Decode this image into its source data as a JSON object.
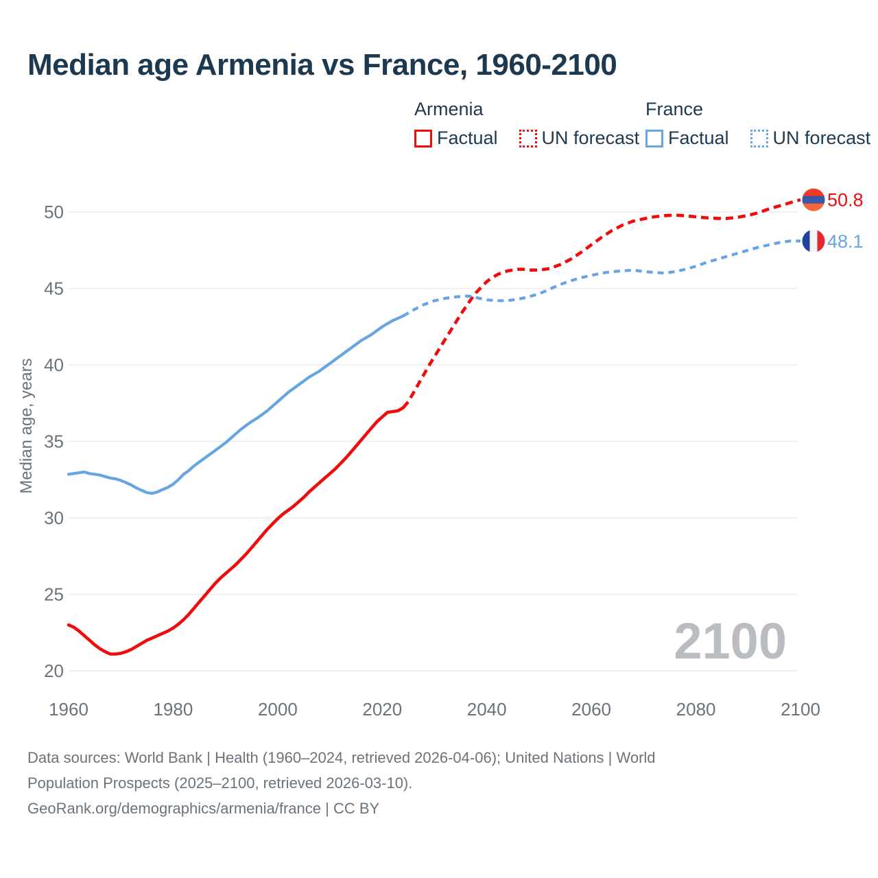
{
  "title": "Median age Armenia vs France, 1960-2100",
  "legend": {
    "groups": [
      {
        "name": "Armenia",
        "color": "#ee0d0d",
        "items": [
          {
            "label": "Factual",
            "style": "solid"
          },
          {
            "label": "UN forecast",
            "style": "dotted"
          }
        ]
      },
      {
        "name": "France",
        "color": "#66a4e2",
        "items": [
          {
            "label": "Factual",
            "style": "solid"
          },
          {
            "label": "UN forecast",
            "style": "dotted"
          }
        ]
      }
    ]
  },
  "chart_data": {
    "type": "line",
    "title": "Median age Armenia vs France, 1960-2100",
    "xlabel": "",
    "ylabel": "Median age, years",
    "xlim": [
      1960,
      2100
    ],
    "ylim": [
      20,
      50
    ],
    "xticks": [
      1960,
      1980,
      2000,
      2020,
      2040,
      2060,
      2080,
      2100
    ],
    "yticks": [
      20,
      25,
      30,
      35,
      40,
      45,
      50
    ],
    "grid": true,
    "legend_position": "top-right",
    "watermark": "2100",
    "series": [
      {
        "id": "armenia-factual",
        "name": "Armenia Factual",
        "color": "#ee0d0d",
        "width": 4.6,
        "dash": null,
        "points": [
          [
            1960,
            23.0
          ],
          [
            1961,
            22.85
          ],
          [
            1962,
            22.6
          ],
          [
            1963,
            22.3
          ],
          [
            1964,
            22.0
          ],
          [
            1965,
            21.7
          ],
          [
            1966,
            21.45
          ],
          [
            1967,
            21.25
          ],
          [
            1968,
            21.1
          ],
          [
            1969,
            21.1
          ],
          [
            1970,
            21.15
          ],
          [
            1971,
            21.25
          ],
          [
            1972,
            21.4
          ],
          [
            1973,
            21.6
          ],
          [
            1974,
            21.8
          ],
          [
            1975,
            22.0
          ],
          [
            1976,
            22.15
          ],
          [
            1977,
            22.3
          ],
          [
            1978,
            22.45
          ],
          [
            1979,
            22.6
          ],
          [
            1980,
            22.8
          ],
          [
            1981,
            23.05
          ],
          [
            1982,
            23.35
          ],
          [
            1983,
            23.7
          ],
          [
            1984,
            24.1
          ],
          [
            1985,
            24.5
          ],
          [
            1986,
            24.9
          ],
          [
            1987,
            25.3
          ],
          [
            1988,
            25.7
          ],
          [
            1989,
            26.05
          ],
          [
            1990,
            26.35
          ],
          [
            1991,
            26.65
          ],
          [
            1992,
            26.95
          ],
          [
            1993,
            27.3
          ],
          [
            1994,
            27.65
          ],
          [
            1995,
            28.05
          ],
          [
            1996,
            28.45
          ],
          [
            1997,
            28.85
          ],
          [
            1998,
            29.25
          ],
          [
            1999,
            29.6
          ],
          [
            2000,
            29.95
          ],
          [
            2001,
            30.25
          ],
          [
            2002,
            30.5
          ],
          [
            2003,
            30.75
          ],
          [
            2004,
            31.05
          ],
          [
            2005,
            31.35
          ],
          [
            2006,
            31.7
          ],
          [
            2007,
            32.0
          ],
          [
            2008,
            32.3
          ],
          [
            2009,
            32.6
          ],
          [
            2010,
            32.9
          ],
          [
            2011,
            33.2
          ],
          [
            2012,
            33.55
          ],
          [
            2013,
            33.9
          ],
          [
            2014,
            34.3
          ],
          [
            2015,
            34.7
          ],
          [
            2016,
            35.1
          ],
          [
            2017,
            35.5
          ],
          [
            2018,
            35.9
          ],
          [
            2019,
            36.3
          ],
          [
            2020,
            36.6
          ],
          [
            2021,
            36.9
          ],
          [
            2022,
            36.95
          ],
          [
            2023,
            37.0
          ],
          [
            2024,
            37.2
          ]
        ]
      },
      {
        "id": "armenia-forecast",
        "name": "Armenia UN forecast",
        "color": "#ee0d0d",
        "width": 4.6,
        "dash": "11 7",
        "points": [
          [
            2024,
            37.2
          ],
          [
            2025,
            37.6
          ],
          [
            2026,
            38.2
          ],
          [
            2027,
            38.8
          ],
          [
            2028,
            39.4
          ],
          [
            2029,
            40.0
          ],
          [
            2030,
            40.55
          ],
          [
            2031,
            41.1
          ],
          [
            2032,
            41.65
          ],
          [
            2033,
            42.2
          ],
          [
            2034,
            42.75
          ],
          [
            2035,
            43.3
          ],
          [
            2036,
            43.8
          ],
          [
            2037,
            44.3
          ],
          [
            2038,
            44.75
          ],
          [
            2039,
            45.1
          ],
          [
            2040,
            45.45
          ],
          [
            2041,
            45.7
          ],
          [
            2042,
            45.9
          ],
          [
            2043,
            46.05
          ],
          [
            2044,
            46.15
          ],
          [
            2045,
            46.2
          ],
          [
            2046,
            46.25
          ],
          [
            2047,
            46.25
          ],
          [
            2048,
            46.2
          ],
          [
            2050,
            46.2
          ],
          [
            2052,
            46.3
          ],
          [
            2054,
            46.55
          ],
          [
            2056,
            46.9
          ],
          [
            2058,
            47.35
          ],
          [
            2060,
            47.85
          ],
          [
            2062,
            48.35
          ],
          [
            2064,
            48.8
          ],
          [
            2066,
            49.15
          ],
          [
            2068,
            49.4
          ],
          [
            2070,
            49.55
          ],
          [
            2072,
            49.68
          ],
          [
            2074,
            49.76
          ],
          [
            2076,
            49.8
          ],
          [
            2078,
            49.75
          ],
          [
            2080,
            49.68
          ],
          [
            2082,
            49.62
          ],
          [
            2084,
            49.58
          ],
          [
            2086,
            49.58
          ],
          [
            2088,
            49.65
          ],
          [
            2090,
            49.78
          ],
          [
            2092,
            49.95
          ],
          [
            2094,
            50.2
          ],
          [
            2096,
            50.4
          ],
          [
            2098,
            50.6
          ],
          [
            2100,
            50.8
          ]
        ]
      },
      {
        "id": "france-factual",
        "name": "France Factual",
        "color": "#66a4e2",
        "width": 4.2,
        "dash": null,
        "points": [
          [
            1960,
            32.85
          ],
          [
            1961,
            32.9
          ],
          [
            1962,
            32.95
          ],
          [
            1963,
            33.0
          ],
          [
            1964,
            32.9
          ],
          [
            1965,
            32.85
          ],
          [
            1966,
            32.8
          ],
          [
            1967,
            32.7
          ],
          [
            1968,
            32.6
          ],
          [
            1969,
            32.55
          ],
          [
            1970,
            32.45
          ],
          [
            1971,
            32.3
          ],
          [
            1972,
            32.15
          ],
          [
            1973,
            31.95
          ],
          [
            1974,
            31.8
          ],
          [
            1975,
            31.65
          ],
          [
            1976,
            31.6
          ],
          [
            1977,
            31.7
          ],
          [
            1978,
            31.85
          ],
          [
            1979,
            32.0
          ],
          [
            1980,
            32.2
          ],
          [
            1981,
            32.5
          ],
          [
            1982,
            32.85
          ],
          [
            1983,
            33.1
          ],
          [
            1984,
            33.4
          ],
          [
            1985,
            33.65
          ],
          [
            1986,
            33.9
          ],
          [
            1987,
            34.15
          ],
          [
            1988,
            34.4
          ],
          [
            1989,
            34.65
          ],
          [
            1990,
            34.9
          ],
          [
            1991,
            35.2
          ],
          [
            1992,
            35.5
          ],
          [
            1993,
            35.8
          ],
          [
            1994,
            36.05
          ],
          [
            1995,
            36.3
          ],
          [
            1996,
            36.5
          ],
          [
            1997,
            36.75
          ],
          [
            1998,
            37.0
          ],
          [
            1999,
            37.3
          ],
          [
            2000,
            37.6
          ],
          [
            2001,
            37.9
          ],
          [
            2002,
            38.2
          ],
          [
            2003,
            38.45
          ],
          [
            2004,
            38.7
          ],
          [
            2005,
            38.95
          ],
          [
            2006,
            39.2
          ],
          [
            2007,
            39.4
          ],
          [
            2008,
            39.6
          ],
          [
            2009,
            39.85
          ],
          [
            2010,
            40.1
          ],
          [
            2011,
            40.35
          ],
          [
            2012,
            40.6
          ],
          [
            2013,
            40.85
          ],
          [
            2014,
            41.1
          ],
          [
            2015,
            41.35
          ],
          [
            2016,
            41.6
          ],
          [
            2017,
            41.8
          ],
          [
            2018,
            42.0
          ],
          [
            2019,
            42.25
          ],
          [
            2020,
            42.5
          ],
          [
            2021,
            42.7
          ],
          [
            2022,
            42.9
          ],
          [
            2023,
            43.05
          ],
          [
            2024,
            43.2
          ]
        ]
      },
      {
        "id": "france-forecast",
        "name": "France UN forecast",
        "color": "#66a4e2",
        "width": 4.2,
        "dash": "9 7",
        "points": [
          [
            2024,
            43.2
          ],
          [
            2025,
            43.4
          ],
          [
            2026,
            43.6
          ],
          [
            2028,
            43.95
          ],
          [
            2030,
            44.2
          ],
          [
            2032,
            44.35
          ],
          [
            2034,
            44.45
          ],
          [
            2036,
            44.5
          ],
          [
            2037,
            44.48
          ],
          [
            2038,
            44.4
          ],
          [
            2040,
            44.25
          ],
          [
            2042,
            44.2
          ],
          [
            2044,
            44.2
          ],
          [
            2046,
            44.3
          ],
          [
            2048,
            44.45
          ],
          [
            2050,
            44.65
          ],
          [
            2052,
            44.95
          ],
          [
            2054,
            45.25
          ],
          [
            2056,
            45.5
          ],
          [
            2058,
            45.7
          ],
          [
            2060,
            45.85
          ],
          [
            2062,
            46.0
          ],
          [
            2064,
            46.1
          ],
          [
            2066,
            46.15
          ],
          [
            2068,
            46.2
          ],
          [
            2070,
            46.1
          ],
          [
            2072,
            46.05
          ],
          [
            2074,
            46.0
          ],
          [
            2076,
            46.1
          ],
          [
            2078,
            46.25
          ],
          [
            2080,
            46.45
          ],
          [
            2082,
            46.7
          ],
          [
            2084,
            46.9
          ],
          [
            2086,
            47.1
          ],
          [
            2088,
            47.3
          ],
          [
            2090,
            47.5
          ],
          [
            2092,
            47.7
          ],
          [
            2094,
            47.85
          ],
          [
            2096,
            48.0
          ],
          [
            2098,
            48.1
          ],
          [
            2100,
            48.1
          ]
        ]
      }
    ],
    "end_labels": [
      {
        "series": "Armenia",
        "text": "50.8",
        "value": 50.8,
        "color": "#ee0d0d",
        "flag": "armenia"
      },
      {
        "series": "France",
        "text": "48.1",
        "value": 48.1,
        "color": "#66a4e2",
        "flag": "france"
      }
    ],
    "flags": {
      "armenia": {
        "orientation": "horizontal",
        "colors": [
          "#f23a28",
          "#3c56a6",
          "#f4663c"
        ]
      },
      "france": {
        "orientation": "vertical",
        "colors": [
          "#21409f",
          "#f5f5f3",
          "#e52732"
        ]
      }
    }
  },
  "footer": {
    "lines": [
      "Data sources: World Bank | Health (1960–2024, retrieved 2026-04-06); United Nations | World",
      "Population Prospects (2025–2100, retrieved 2026-03-10).",
      "GeoRank.org/demographics/armenia/france | CC BY"
    ]
  }
}
